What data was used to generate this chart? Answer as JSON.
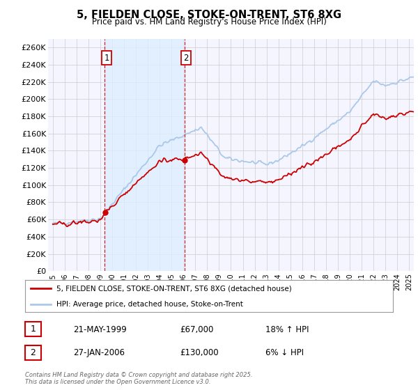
{
  "title": "5, FIELDEN CLOSE, STOKE-ON-TRENT, ST6 8XG",
  "subtitle": "Price paid vs. HM Land Registry's House Price Index (HPI)",
  "ylabel_ticks": [
    "£0",
    "£20K",
    "£40K",
    "£60K",
    "£80K",
    "£100K",
    "£120K",
    "£140K",
    "£160K",
    "£180K",
    "£200K",
    "£220K",
    "£240K",
    "£260K"
  ],
  "ytick_values": [
    0,
    20000,
    40000,
    60000,
    80000,
    100000,
    120000,
    140000,
    160000,
    180000,
    200000,
    220000,
    240000,
    260000
  ],
  "ylim": [
    0,
    270000
  ],
  "xlim_start": 1994.6,
  "xlim_end": 2025.4,
  "xtick_years": [
    "1995",
    "1996",
    "1997",
    "1998",
    "1999",
    "2000",
    "2001",
    "2002",
    "2003",
    "2004",
    "2005",
    "2006",
    "2007",
    "2008",
    "2009",
    "2010",
    "2011",
    "2012",
    "2013",
    "2014",
    "2015",
    "2016",
    "2017",
    "2018",
    "2019",
    "2020",
    "2021",
    "2022",
    "2023",
    "2024",
    "2025"
  ],
  "legend_label_red": "5, FIELDEN CLOSE, STOKE-ON-TRENT, ST6 8XG (detached house)",
  "legend_label_blue": "HPI: Average price, detached house, Stoke-on-Trent",
  "red_color": "#cc0000",
  "blue_color": "#aac8e8",
  "shade_color": "#ddeeff",
  "grid_color": "#cccccc",
  "vline1_x": 1999.38,
  "vline2_x": 2006.07,
  "sale1_date": "21-MAY-1999",
  "sale1_price": "£67,000",
  "sale1_hpi": "18% ↑ HPI",
  "sale2_date": "27-JAN-2006",
  "sale2_price": "£130,000",
  "sale2_hpi": "6% ↓ HPI",
  "footer": "Contains HM Land Registry data © Crown copyright and database right 2025.\nThis data is licensed under the Open Government Licence v3.0.",
  "background_color": "#ffffff",
  "plot_bg_color": "#f5f5ff"
}
